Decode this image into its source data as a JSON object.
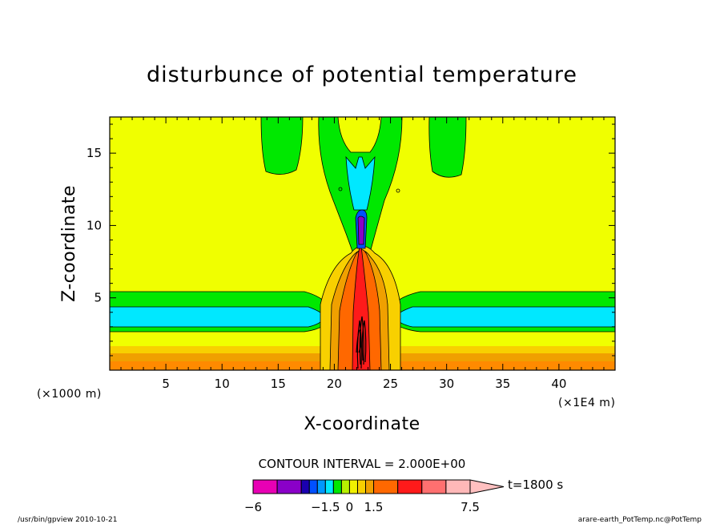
{
  "chart_data": {
    "type": "contour",
    "title": "disturbunce of potential temperature",
    "xlabel": "X-coordinate",
    "ylabel": "Z-coordinate",
    "x_unit_left": "(×1000 m)",
    "x_unit_right": "(×1E4 m)",
    "xlim": [
      0,
      45
    ],
    "ylim": [
      0,
      17.5
    ],
    "x_ticks": [
      "5",
      "10",
      "15",
      "20",
      "25",
      "30",
      "35",
      "40"
    ],
    "y_ticks": [
      "5",
      "10",
      "15"
    ],
    "contour_interval_text": "CONTOUR INTERVAL = 2.000E+00",
    "time_label": "t=1800 s",
    "colorbar": {
      "levels": [
        -6,
        -4.5,
        -3,
        -2.5,
        -2,
        -1.5,
        -1,
        -0.5,
        0,
        0.5,
        1,
        1.5,
        3,
        4.5,
        6,
        7.5
      ],
      "colors": [
        "#e800b4",
        "#8a00c8",
        "#1a00b0",
        "#0050ff",
        "#0098ff",
        "#00e8ff",
        "#00e800",
        "#b8f000",
        "#f0f000",
        "#f8d000",
        "#f0a000",
        "#ff6800",
        "#ff1a1a",
        "#ff7070",
        "#ffb8b8"
      ],
      "extend_color": "#ffc0c0",
      "tick_labels": [
        "−6",
        "−1.5",
        "0",
        "1.5",
        "7.5"
      ]
    },
    "background_color": "#f0ff00"
  },
  "footer": {
    "left": "/usr/bin/gpview  2010-10-21",
    "right": "arare-earth_PotTemp.nc@PotTemp"
  }
}
